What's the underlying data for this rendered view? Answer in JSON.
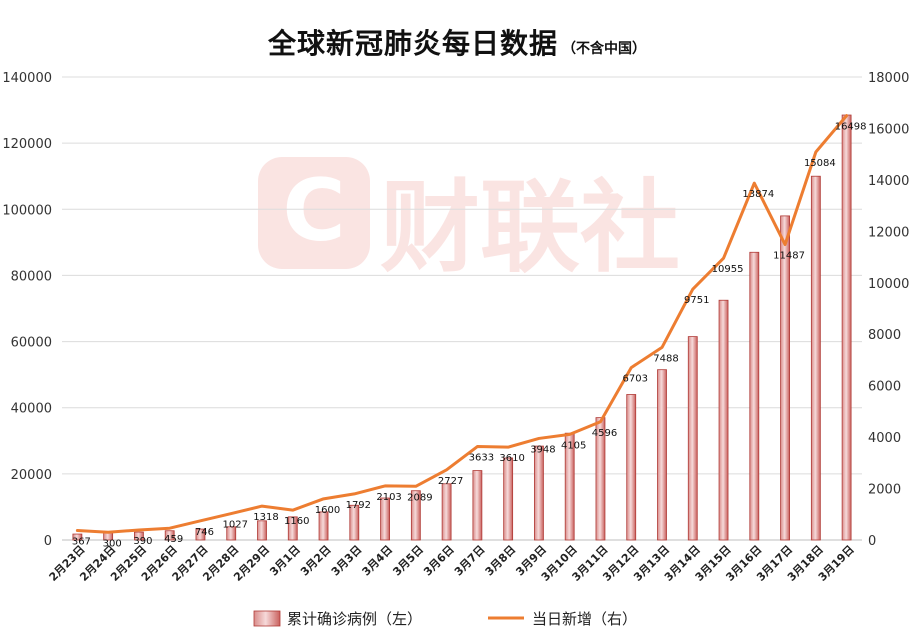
{
  "chart_data": {
    "type": "bar+line",
    "title": "全球新冠肺炎每日数据",
    "subtitle": "（不含中国）",
    "watermark": "财联社",
    "categories": [
      "2月23日",
      "2月24日",
      "2月25日",
      "2月26日",
      "2月27日",
      "2月28日",
      "2月29日",
      "3月1日",
      "3月2日",
      "3月3日",
      "3月4日",
      "3月5日",
      "3月6日",
      "3月7日",
      "3月8日",
      "3月9日",
      "3月10日",
      "3月11日",
      "3月12日",
      "3月13日",
      "3月14日",
      "3月15日",
      "3月16日",
      "3月17日",
      "3月18日",
      "3月19日"
    ],
    "series": [
      {
        "name": "累计确诊病例（左）",
        "type": "bar",
        "axis": "left",
        "color": "#c0504d",
        "values": [
          1800,
          2100,
          2400,
          2800,
          3300,
          4000,
          5800,
          7000,
          8500,
          10500,
          12700,
          14900,
          17000,
          21000,
          24800,
          28400,
          32300,
          37000,
          44000,
          51500,
          61500,
          72500,
          87000,
          98000,
          110000,
          128500
        ]
      },
      {
        "name": "当日新增（右）",
        "type": "line",
        "axis": "right",
        "color": "#ed7d31",
        "values": [
          367,
          300,
          390,
          459,
          746,
          1027,
          1318,
          1160,
          1600,
          1792,
          2103,
          2089,
          2727,
          3633,
          3610,
          3948,
          4105,
          4596,
          6703,
          7488,
          9751,
          10955,
          13874,
          11487,
          15084,
          16498
        ],
        "labels": [
          "367",
          "300",
          "390",
          "459",
          "746",
          "1027",
          "1318",
          "1160",
          "1600",
          "1792",
          "2103",
          "2089",
          "2727",
          "3633",
          "3610",
          "3948",
          "4105",
          "4596",
          "6703",
          "7488",
          "9751",
          "10955",
          "13874",
          "11487",
          "15084",
          "16498"
        ]
      }
    ],
    "y_left": {
      "min": 0,
      "max": 140000,
      "ticks": [
        "0",
        "20000",
        "40000",
        "60000",
        "80000",
        "100000",
        "120000",
        "140000"
      ]
    },
    "y_right": {
      "min": 0,
      "max": 18000,
      "ticks": [
        "0",
        "2000",
        "4000",
        "6000",
        "8000",
        "10000",
        "12000",
        "14000",
        "16000",
        "18000"
      ]
    },
    "grid": true,
    "legend_position": "bottom"
  }
}
